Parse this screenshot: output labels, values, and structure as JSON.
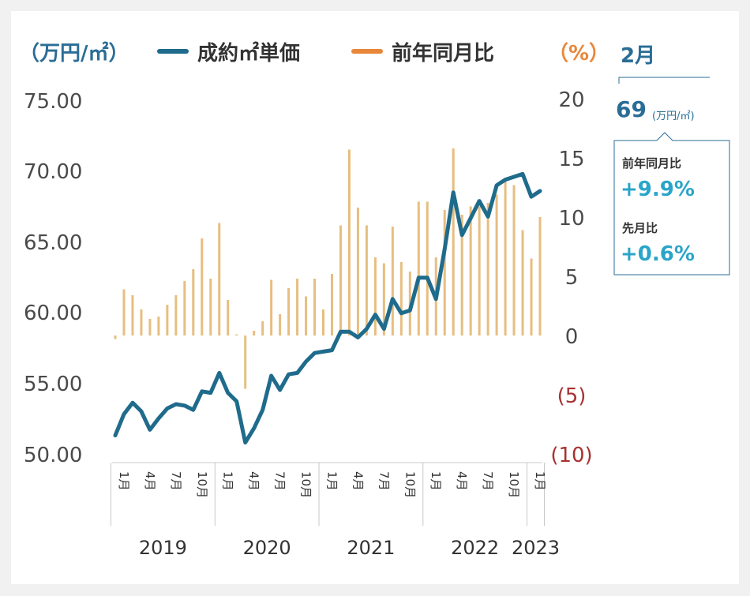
{
  "chart_data": {
    "type": "bar+line",
    "title": "",
    "legend": [
      {
        "name": "成約㎡単価",
        "color": "#1f6b8c",
        "kind": "line"
      },
      {
        "name": "前年同月比",
        "color": "#e8873a",
        "kind": "bar"
      }
    ],
    "left_axis": {
      "label": "（万円/㎡）",
      "ylim": [
        50,
        75
      ],
      "ticks": [
        "75.00",
        "70.00",
        "65.00",
        "60.00",
        "55.00",
        "50.00"
      ],
      "tick_values": [
        75,
        70,
        65,
        60,
        55,
        50
      ]
    },
    "right_axis": {
      "label": "（%）",
      "ylim": [
        -10,
        20
      ],
      "ticks": [
        "20",
        "15",
        "10",
        "5",
        "0",
        "(5)",
        "(10)"
      ],
      "tick_values": [
        20,
        15,
        10,
        5,
        0,
        -5,
        -10
      ]
    },
    "year_labels": [
      {
        "label": "2019",
        "start": 0,
        "end": 11
      },
      {
        "label": "2020",
        "start": 12,
        "end": 23
      },
      {
        "label": "2021",
        "start": 24,
        "end": 35
      },
      {
        "label": "2022",
        "start": 36,
        "end": 47
      },
      {
        "label": "2023",
        "start": 48,
        "end": 49
      }
    ],
    "month_tick_labels": [
      {
        "i": 1,
        "label": "1月"
      },
      {
        "i": 4,
        "label": "4月"
      },
      {
        "i": 7,
        "label": "7月"
      },
      {
        "i": 10,
        "label": "10月"
      },
      {
        "i": 13,
        "label": "1月"
      },
      {
        "i": 16,
        "label": "4月"
      },
      {
        "i": 19,
        "label": "7月"
      },
      {
        "i": 22,
        "label": "10月"
      },
      {
        "i": 25,
        "label": "1月"
      },
      {
        "i": 28,
        "label": "4月"
      },
      {
        "i": 31,
        "label": "7月"
      },
      {
        "i": 34,
        "label": "10月"
      },
      {
        "i": 37,
        "label": "1月"
      },
      {
        "i": 40,
        "label": "4月"
      },
      {
        "i": 43,
        "label": "7月"
      },
      {
        "i": 46,
        "label": "10月"
      },
      {
        "i": 49,
        "label": "1月"
      }
    ],
    "series": [
      {
        "name": "成約㎡単価",
        "axis": "left",
        "values": [
          51.3,
          52.8,
          53.6,
          53.0,
          51.7,
          52.5,
          53.2,
          53.5,
          53.4,
          53.1,
          54.4,
          54.3,
          55.7,
          54.3,
          53.7,
          50.8,
          51.8,
          53.1,
          55.5,
          54.5,
          55.6,
          55.7,
          56.5,
          57.1,
          57.2,
          57.3,
          58.6,
          58.6,
          58.2,
          58.8,
          59.8,
          58.8,
          60.9,
          59.9,
          60.1,
          62.4,
          62.4,
          60.9,
          64.4,
          68.4,
          65.4,
          66.6,
          67.8,
          66.7,
          68.9,
          69.3,
          69.5,
          69.7,
          68.1,
          68.5
        ]
      },
      {
        "name": "前年同月比",
        "axis": "right",
        "values": [
          -0.3,
          3.9,
          3.4,
          2.2,
          1.4,
          1.6,
          2.6,
          3.4,
          4.6,
          5.6,
          8.2,
          4.8,
          9.5,
          3.0,
          0.1,
          -4.5,
          0.4,
          1.2,
          4.7,
          1.8,
          4.0,
          4.8,
          3.3,
          4.8,
          2.2,
          5.2,
          9.3,
          15.7,
          10.8,
          9.3,
          6.6,
          6.1,
          9.2,
          6.2,
          5.4,
          11.3,
          11.3,
          6.6,
          10.6,
          15.8,
          10.2,
          10.9,
          10.9,
          11.2,
          11.9,
          13.1,
          12.7,
          8.9,
          6.5,
          10.0
        ]
      }
    ]
  },
  "callout": {
    "month_label": "2月",
    "price_value": "69",
    "price_unit": "(万円/㎡)",
    "yoy_label": "前年同月比",
    "yoy_value": "+9.9%",
    "mom_label": "先月比",
    "mom_value": "+0.6%"
  },
  "colors": {
    "line": "#1f6b8c",
    "bar": "#e7be80",
    "legend_bar": "#e8873a",
    "axis_text": "#4a4a4a",
    "negative_tick": "#a83232",
    "callout_value": "#2aa5c9",
    "accent_blue": "#2a6d96",
    "right_axis_label": "#e8873a"
  }
}
